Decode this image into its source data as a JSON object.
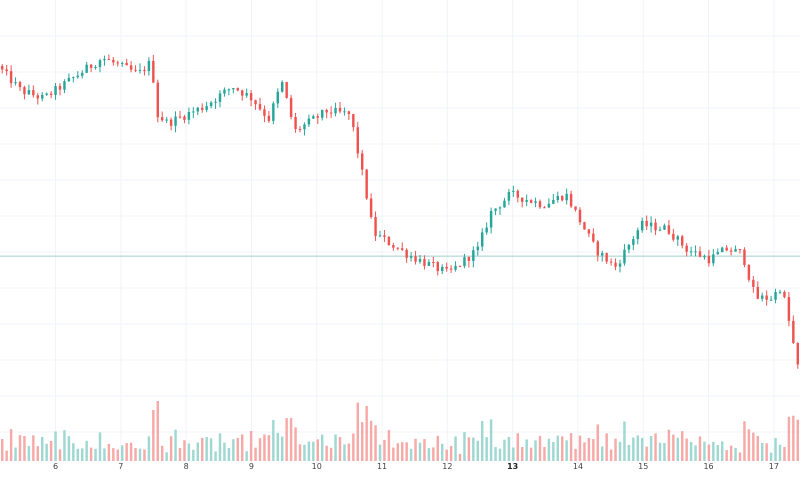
{
  "chart_data": {
    "type": "candlestick",
    "title": "",
    "xlabel": "",
    "ylabel": "",
    "grid": true,
    "legend": "none",
    "price_scale": {
      "high": 100,
      "low": 0
    },
    "x_range": [
      5.15,
      17.4
    ],
    "x_ticks": [
      {
        "label": "6",
        "x": 6,
        "bold": false
      },
      {
        "label": "7",
        "x": 7,
        "bold": false
      },
      {
        "label": "8",
        "x": 8,
        "bold": false
      },
      {
        "label": "9",
        "x": 9,
        "bold": false
      },
      {
        "label": "10",
        "x": 10,
        "bold": false
      },
      {
        "label": "11",
        "x": 11,
        "bold": false
      },
      {
        "label": "12",
        "x": 12,
        "bold": false
      },
      {
        "label": "13",
        "x": 13,
        "bold": true
      },
      {
        "label": "14",
        "x": 14,
        "bold": false
      },
      {
        "label": "15",
        "x": 15,
        "bold": false
      },
      {
        "label": "16",
        "x": 16,
        "bold": false
      },
      {
        "label": "17",
        "x": 17,
        "bold": false
      }
    ],
    "reference_line": 38.3,
    "colors": {
      "up": "#26a69a",
      "down": "#ef5350",
      "up_volume": "#9fd8d2",
      "down_volume": "#f7a9a7",
      "grid": "#f0f3fa",
      "reference": "#9fd0cc"
    },
    "keypoints": [
      {
        "x": 5.15,
        "y": 85
      },
      {
        "x": 5.5,
        "y": 79
      },
      {
        "x": 5.85,
        "y": 77
      },
      {
        "x": 6.3,
        "y": 82
      },
      {
        "x": 6.75,
        "y": 87
      },
      {
        "x": 7.3,
        "y": 83
      },
      {
        "x": 7.5,
        "y": 86
      },
      {
        "x": 7.6,
        "y": 73
      },
      {
        "x": 7.75,
        "y": 71
      },
      {
        "x": 8.3,
        "y": 75
      },
      {
        "x": 8.75,
        "y": 80
      },
      {
        "x": 9.05,
        "y": 77
      },
      {
        "x": 9.3,
        "y": 72
      },
      {
        "x": 9.5,
        "y": 81
      },
      {
        "x": 9.7,
        "y": 69
      },
      {
        "x": 10.2,
        "y": 74
      },
      {
        "x": 10.55,
        "y": 73
      },
      {
        "x": 10.8,
        "y": 53
      },
      {
        "x": 10.9,
        "y": 44
      },
      {
        "x": 11.2,
        "y": 41
      },
      {
        "x": 11.45,
        "y": 38.5
      },
      {
        "x": 12.05,
        "y": 34
      },
      {
        "x": 12.5,
        "y": 40
      },
      {
        "x": 12.7,
        "y": 49
      },
      {
        "x": 13.0,
        "y": 53.5
      },
      {
        "x": 13.5,
        "y": 51
      },
      {
        "x": 13.85,
        "y": 53.5
      },
      {
        "x": 14.3,
        "y": 40
      },
      {
        "x": 14.6,
        "y": 35.5
      },
      {
        "x": 15.0,
        "y": 46
      },
      {
        "x": 15.4,
        "y": 45
      },
      {
        "x": 15.7,
        "y": 40
      },
      {
        "x": 16.05,
        "y": 37.5
      },
      {
        "x": 16.3,
        "y": 40
      },
      {
        "x": 16.55,
        "y": 39
      },
      {
        "x": 16.75,
        "y": 28
      },
      {
        "x": 17.0,
        "y": 28
      },
      {
        "x": 17.15,
        "y": 31
      },
      {
        "x": 17.28,
        "y": 21
      },
      {
        "x": 17.4,
        "y": 11
      }
    ]
  }
}
